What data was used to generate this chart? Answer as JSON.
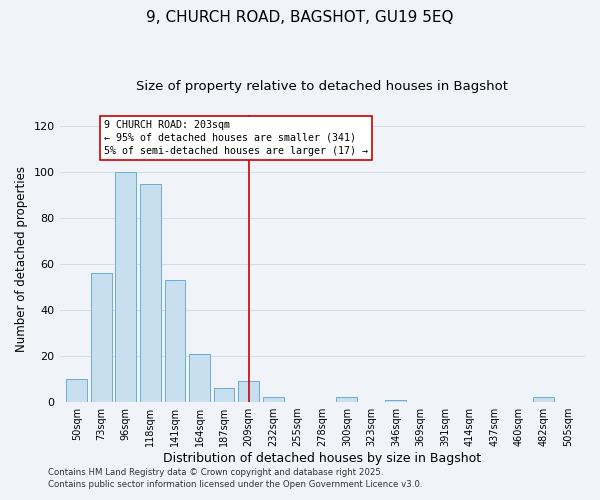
{
  "title": "9, CHURCH ROAD, BAGSHOT, GU19 5EQ",
  "subtitle": "Size of property relative to detached houses in Bagshot",
  "xlabel": "Distribution of detached houses by size in Bagshot",
  "ylabel": "Number of detached properties",
  "categories": [
    "50sqm",
    "73sqm",
    "96sqm",
    "118sqm",
    "141sqm",
    "164sqm",
    "187sqm",
    "209sqm",
    "232sqm",
    "255sqm",
    "278sqm",
    "300sqm",
    "323sqm",
    "346sqm",
    "369sqm",
    "391sqm",
    "414sqm",
    "437sqm",
    "460sqm",
    "482sqm",
    "505sqm"
  ],
  "values": [
    10,
    56,
    100,
    95,
    53,
    21,
    6,
    9,
    2,
    0,
    0,
    2,
    0,
    1,
    0,
    0,
    0,
    0,
    0,
    2,
    0
  ],
  "bar_color": "#c8dff0",
  "bar_edge_color": "#6badd6",
  "vline_x_index": 7,
  "vline_color": "#cc0000",
  "annotation_title": "9 CHURCH ROAD: 203sqm",
  "annotation_line1": "← 95% of detached houses are smaller (341)",
  "annotation_line2": "5% of semi-detached houses are larger (17) →",
  "annotation_box_color": "#ffffff",
  "annotation_box_edge": "#cc0000",
  "ylim": [
    0,
    125
  ],
  "yticks": [
    0,
    20,
    40,
    60,
    80,
    100,
    120
  ],
  "footer1": "Contains HM Land Registry data © Crown copyright and database right 2025.",
  "footer2": "Contains public sector information licensed under the Open Government Licence v3.0.",
  "background_color": "#f0f4f8",
  "grid_color": "#d0dce8",
  "title_fontsize": 11,
  "subtitle_fontsize": 9.5
}
